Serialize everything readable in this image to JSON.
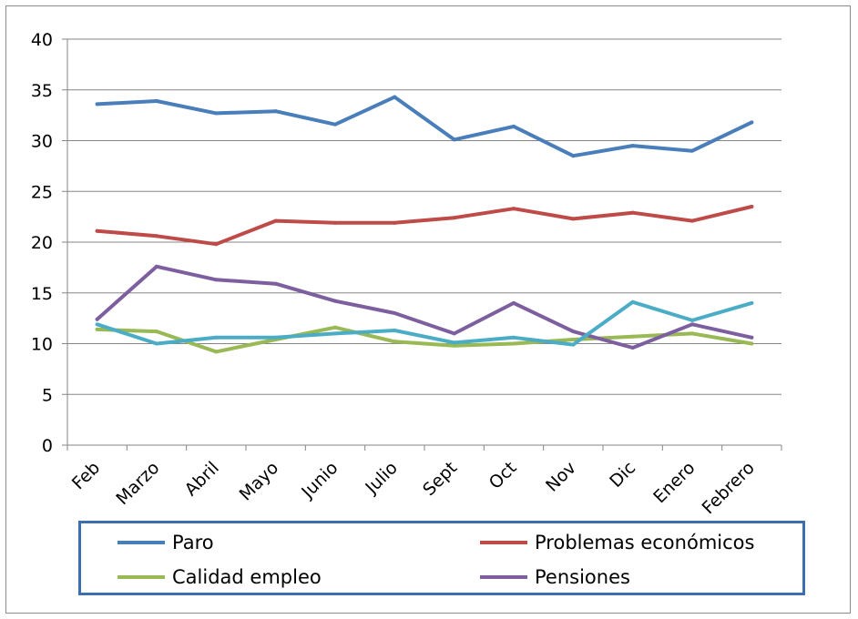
{
  "chart_data": {
    "type": "line",
    "title": "",
    "xlabel": "",
    "ylabel": "",
    "ylim": [
      0,
      40
    ],
    "yticks": [
      0,
      5,
      10,
      15,
      20,
      25,
      30,
      35,
      40
    ],
    "grid": true,
    "legend_position": "bottom",
    "categories": [
      "Feb",
      "Marzo",
      "Abril",
      "Mayo",
      "Junio",
      "Julio",
      "Sept",
      "Oct",
      "Nov",
      "Dic",
      "Enero",
      "Febrero"
    ],
    "series": [
      {
        "name": "Paro",
        "color": "#4a7ebb",
        "values": [
          33.6,
          33.9,
          32.7,
          32.9,
          31.6,
          34.3,
          30.1,
          31.4,
          28.5,
          29.5,
          29.0,
          31.8
        ]
      },
      {
        "name": "Problemas económicos",
        "color": "#be4b48",
        "values": [
          21.1,
          20.6,
          19.8,
          22.1,
          21.9,
          21.9,
          22.4,
          23.3,
          22.3,
          22.9,
          22.1,
          23.5
        ]
      },
      {
        "name": "Calidad empleo",
        "color": "#98b954",
        "values": [
          11.4,
          11.2,
          9.2,
          10.4,
          11.6,
          10.2,
          9.8,
          10.0,
          10.4,
          10.7,
          11.0,
          10.0
        ]
      },
      {
        "name": "Pensiones",
        "color": "#7d5fa0",
        "values": [
          12.4,
          17.6,
          16.3,
          15.9,
          14.2,
          13.0,
          11.0,
          14.0,
          11.2,
          9.6,
          11.9,
          10.6
        ]
      },
      {
        "color": "#4bacc6",
        "values": [
          11.9,
          10.0,
          10.6,
          10.6,
          11.0,
          11.3,
          10.1,
          10.6,
          9.9,
          14.1,
          12.3,
          14.0
        ]
      }
    ],
    "legend": [
      {
        "label": "Paro",
        "color": "#4a7ebb"
      },
      {
        "label": "Problemas económicos",
        "color": "#be4b48"
      },
      {
        "label": "Calidad empleo",
        "color": "#98b954"
      },
      {
        "label": "Pensiones",
        "color": "#7d5fa0"
      }
    ]
  }
}
